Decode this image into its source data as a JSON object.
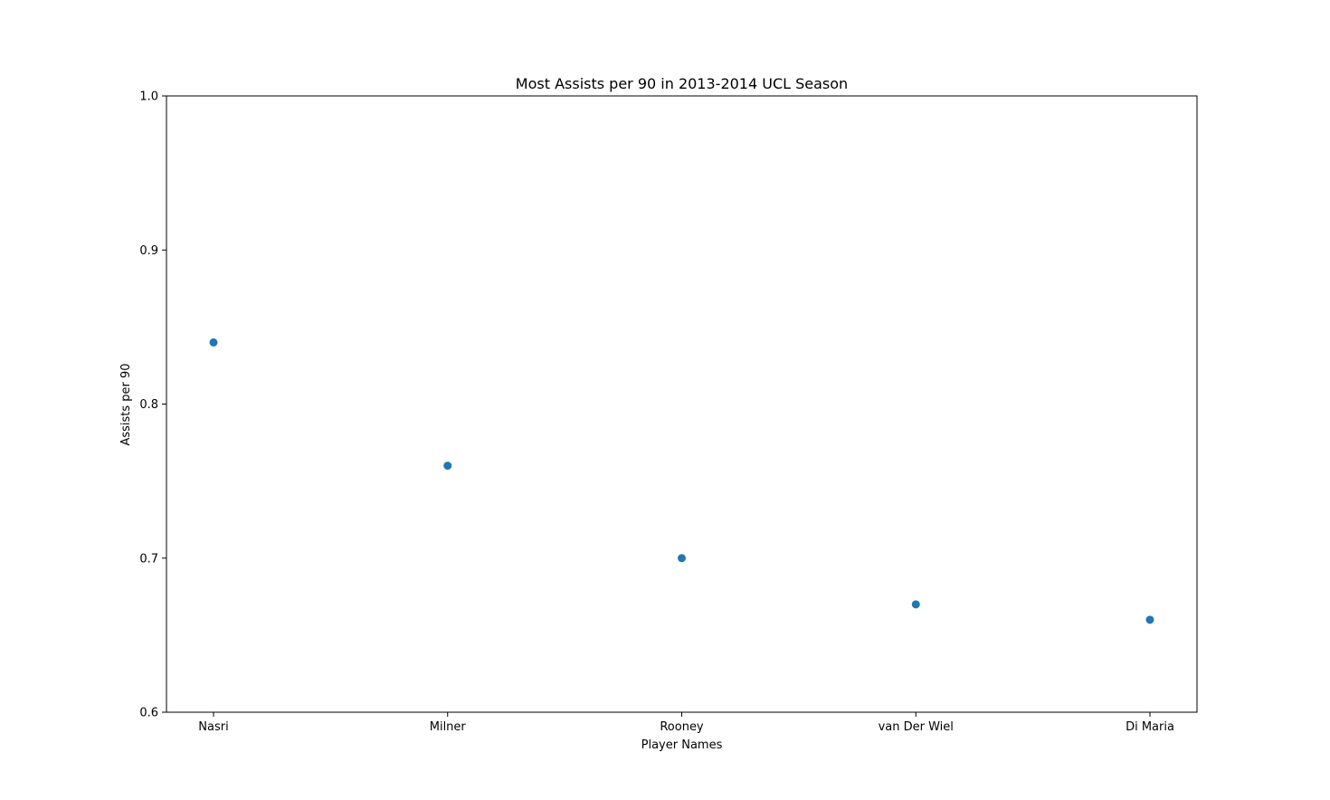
{
  "chart_data": {
    "type": "scatter",
    "title": "Most Assists per 90 in 2013-2014 UCL Season",
    "xlabel": "Player Names",
    "ylabel": "Assists per 90",
    "categories": [
      "Nasri",
      "Milner",
      "Rooney",
      "van Der Wiel",
      "Di Maria"
    ],
    "values": [
      0.84,
      0.76,
      0.7,
      0.67,
      0.66
    ],
    "ylim": [
      0.6,
      1.0
    ],
    "yticks": [
      "0.6",
      "0.7",
      "0.8",
      "0.9",
      "1.0"
    ],
    "grid": false,
    "marker_color": "#1f77b4"
  }
}
